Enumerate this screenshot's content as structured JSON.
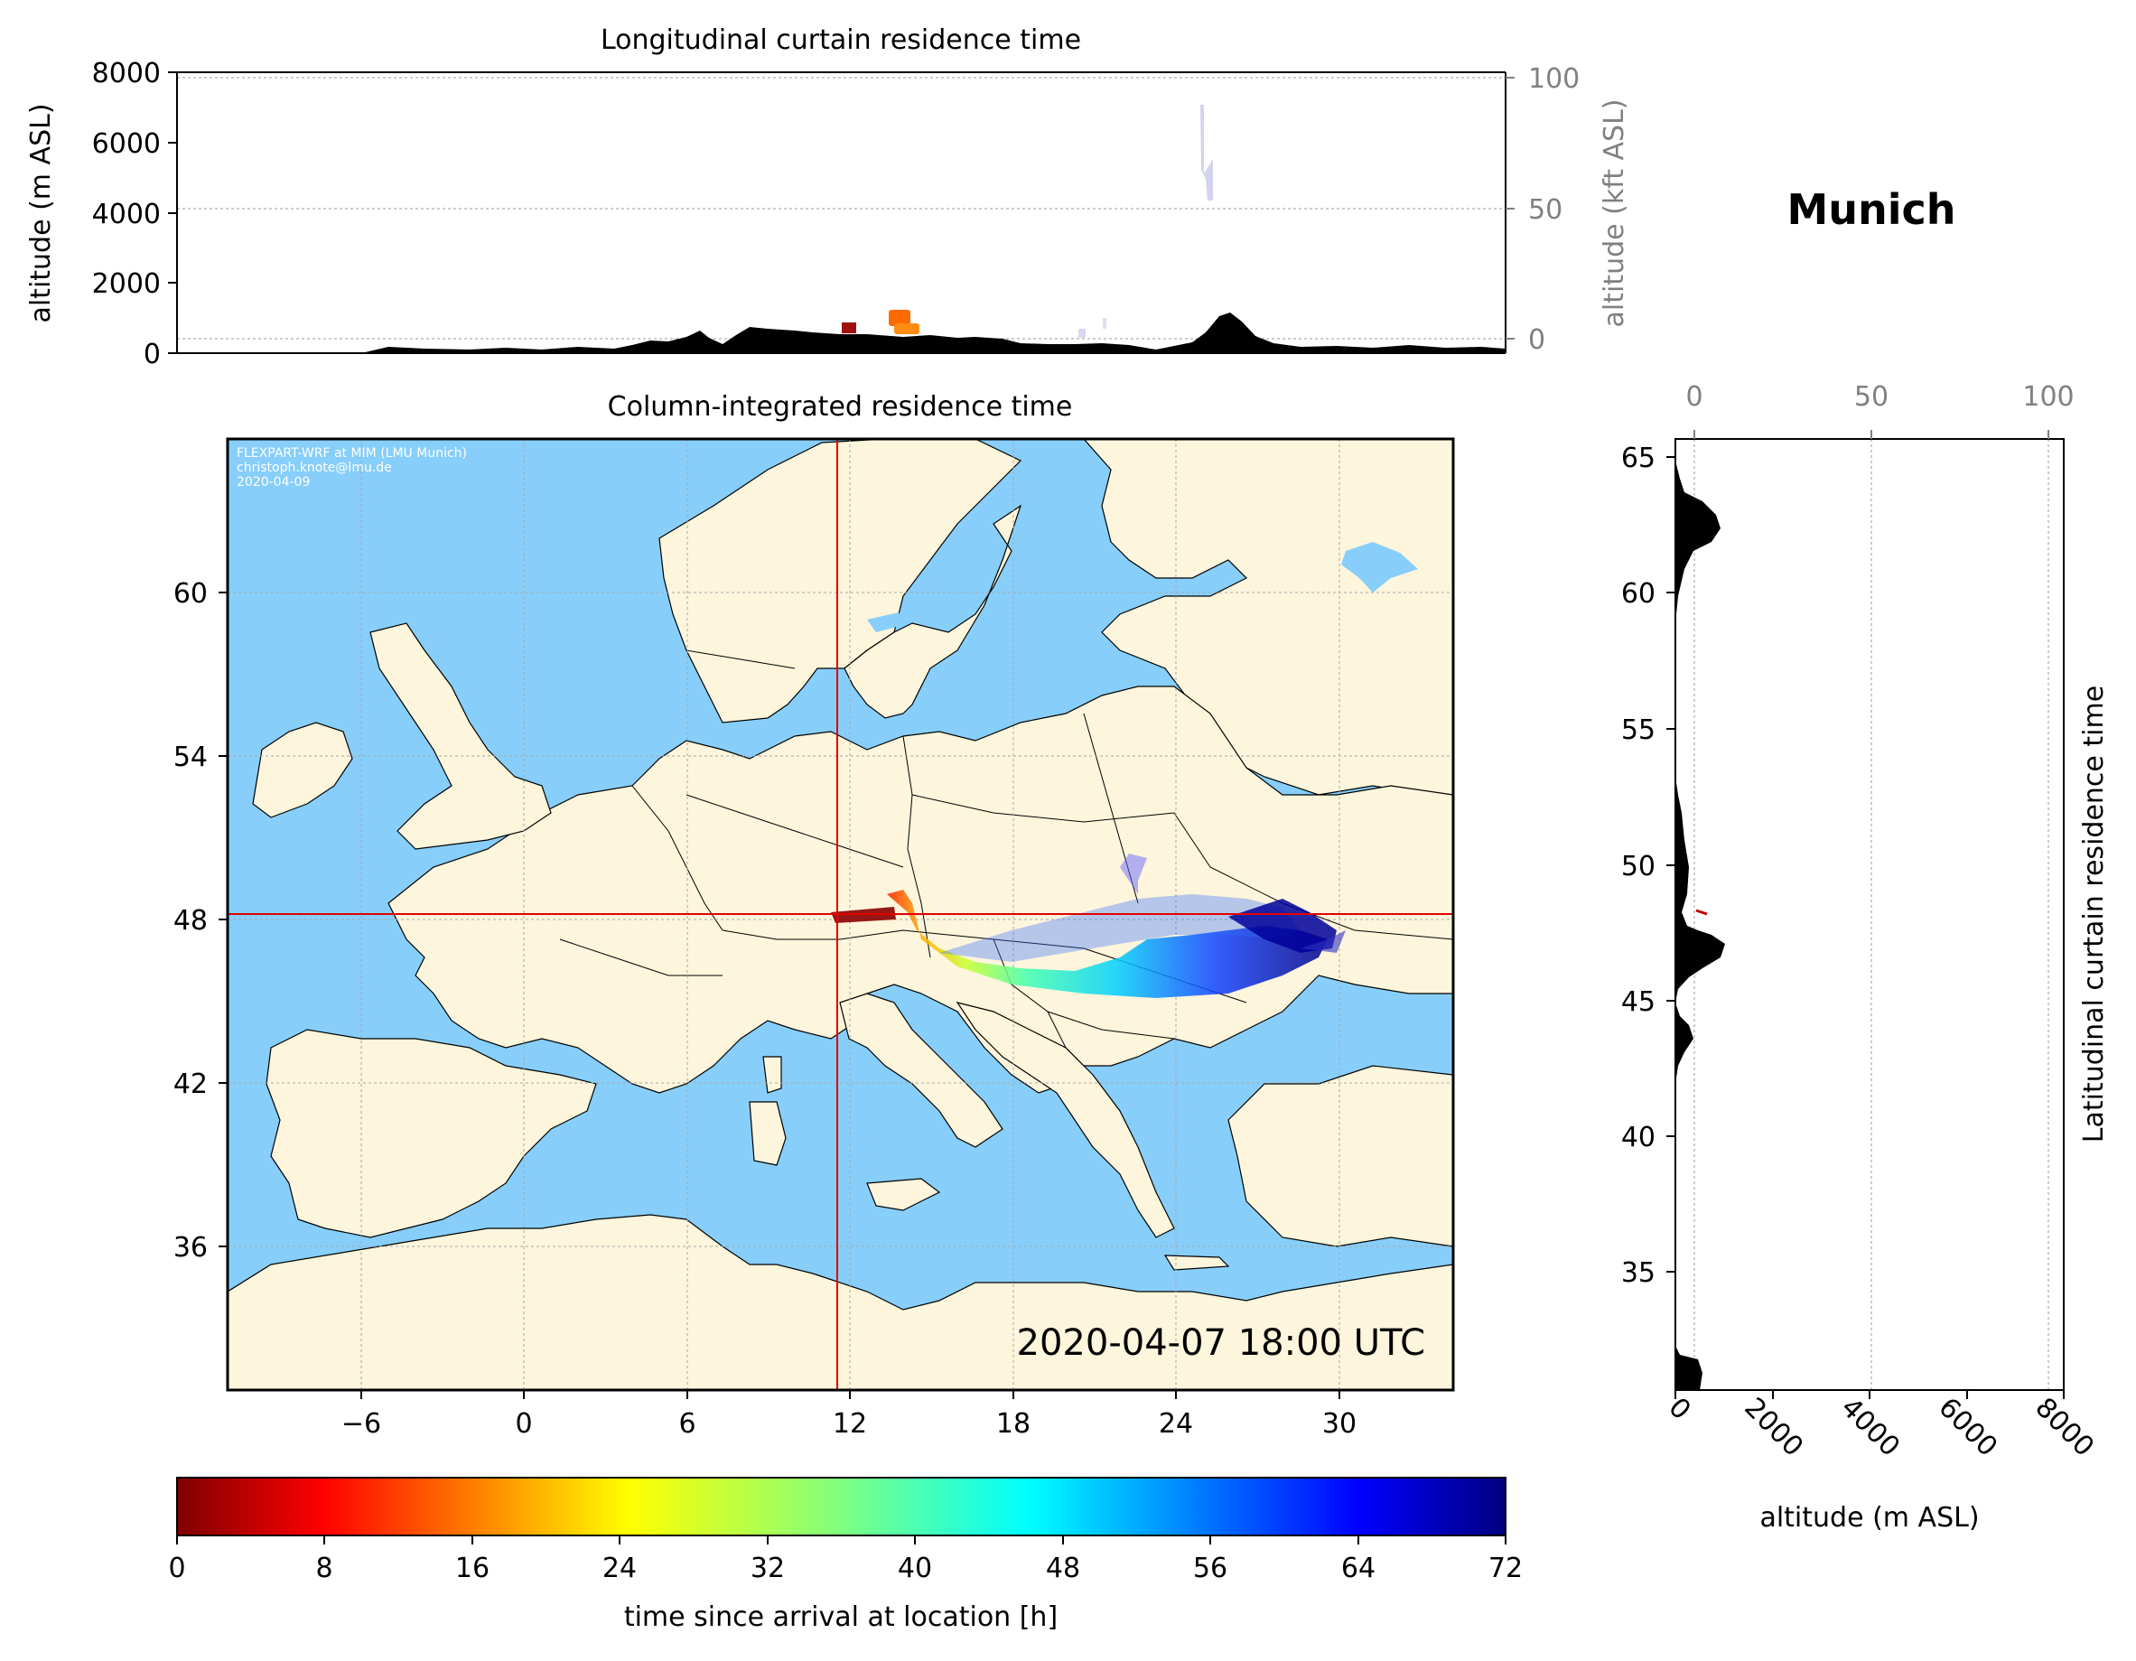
{
  "top_panel": {
    "title": "Longitudinal curtain residence time",
    "ylabel": "altitude (m ASL)",
    "ylabel_right": "altitude (kft ASL)",
    "yticks": [
      "0",
      "2000",
      "4000",
      "6000",
      "8000"
    ],
    "yticks_right": [
      "0",
      "50",
      "100"
    ]
  },
  "location": {
    "name": "Munich"
  },
  "map_panel": {
    "title": "Column-integrated residence time",
    "credit_lines": [
      "FLEXPART-WRF at MIM (LMU Munich)",
      "christoph.knote@lmu.de",
      "2020-04-09"
    ],
    "timestamp": "2020-04-07 18:00 UTC",
    "xticks": [
      "−6",
      "0",
      "6",
      "12",
      "18",
      "24",
      "30"
    ],
    "yticks": [
      "36",
      "42",
      "48",
      "54",
      "60"
    ],
    "crosshair": {
      "lon": 11.6,
      "lat": 48.1,
      "color": "#e00000"
    },
    "ocean_color": "#87cefa",
    "land_color": "#fdf5dc"
  },
  "right_panel": {
    "ylabel_right": "Latitudinal curtain residence time",
    "xlabel": "altitude (m ASL)",
    "yticks": [
      "35",
      "40",
      "45",
      "50",
      "55",
      "60",
      "65"
    ],
    "xticks": [
      "0",
      "2000",
      "4000",
      "6000",
      "8000"
    ],
    "xticks_top": [
      "0",
      "50",
      "100"
    ]
  },
  "colorbar": {
    "label": "time since arrival at location [h]",
    "ticks": [
      "0",
      "8",
      "16",
      "24",
      "32",
      "40",
      "48",
      "56",
      "64",
      "72"
    ],
    "colormap": "jet",
    "range": [
      0,
      72
    ]
  }
}
